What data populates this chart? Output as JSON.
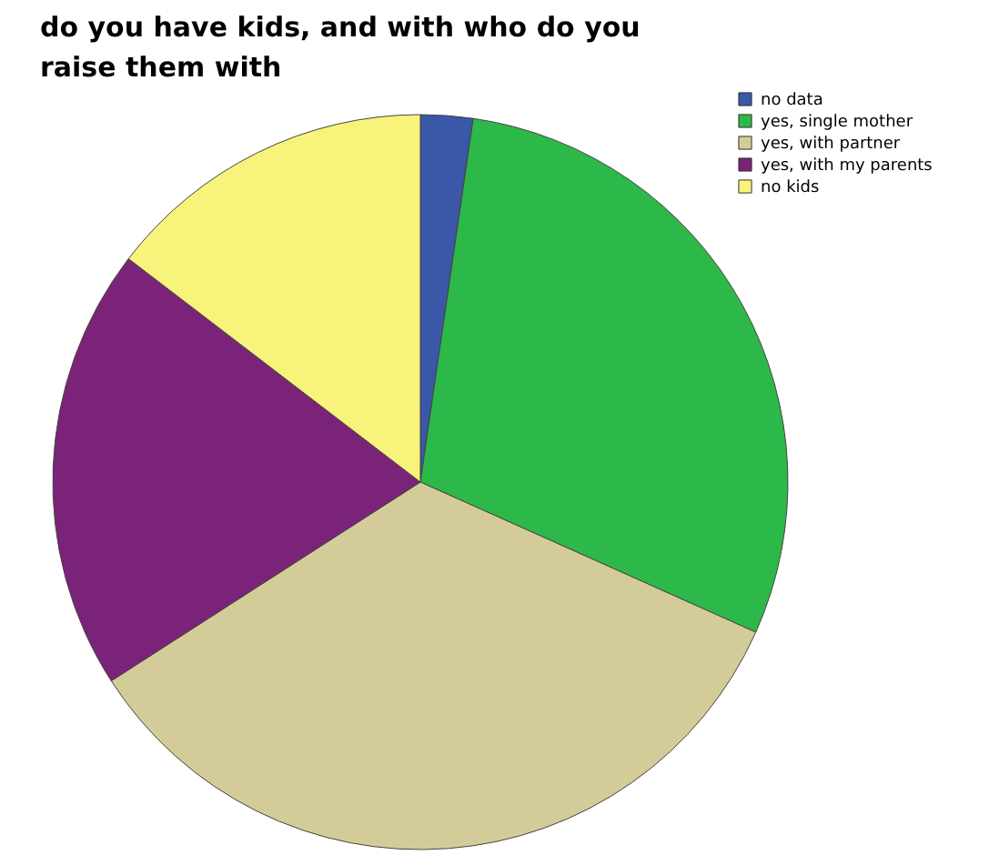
{
  "chart_data": {
    "type": "pie",
    "title": "do you have kids, and with who do you raise them with",
    "categories": [
      "no data",
      "yes, single mother",
      "yes, with partner",
      "yes, with my parents",
      "no kids"
    ],
    "values": [
      2.3,
      29.4,
      34.2,
      19.5,
      14.6
    ],
    "colors": [
      "#3a57a8",
      "#2db84a",
      "#d4cc98",
      "#7b2378",
      "#f8f37a"
    ],
    "legend": "top right"
  }
}
